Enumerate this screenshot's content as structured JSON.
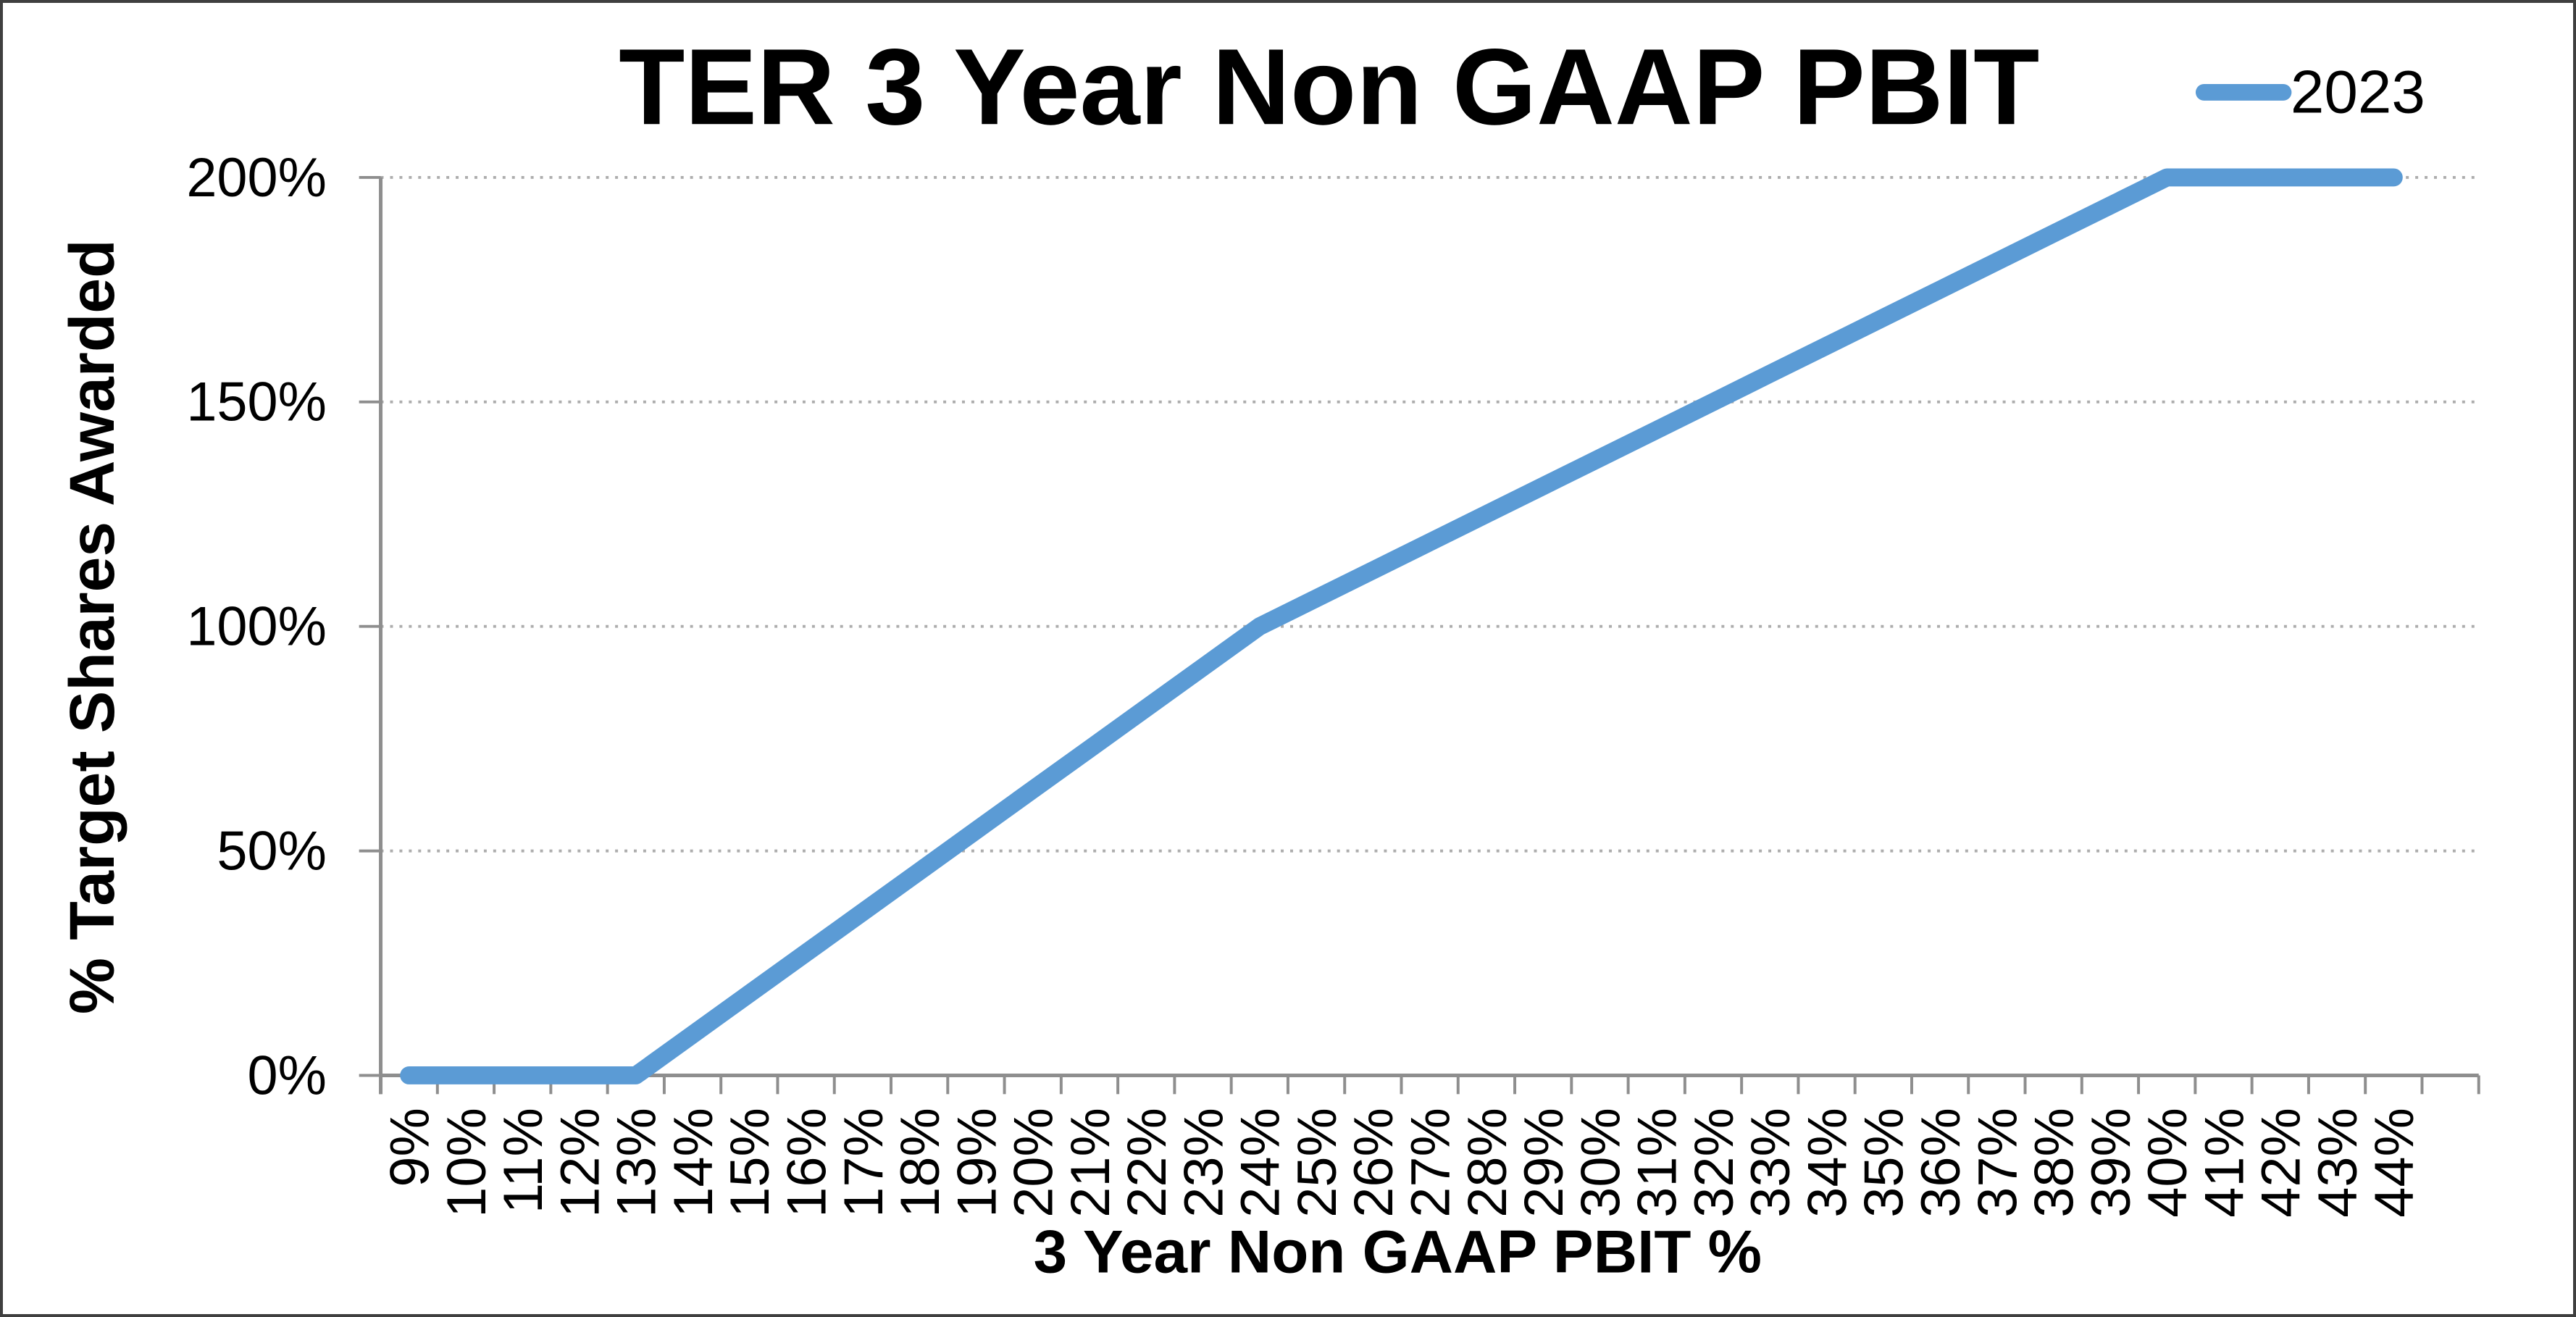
{
  "chart_data": {
    "type": "line",
    "title": "TER 3 Year Non GAAP PBIT",
    "xlabel": "3 Year Non GAAP PBIT %",
    "ylabel": "% Target Shares Awarded",
    "x_categories": [
      "9%",
      "10%",
      "11%",
      "12%",
      "13%",
      "14%",
      "15%",
      "16%",
      "17%",
      "18%",
      "19%",
      "20%",
      "21%",
      "22%",
      "23%",
      "24%",
      "25%",
      "26%",
      "27%",
      "28%",
      "29%",
      "30%",
      "31%",
      "32%",
      "33%",
      "34%",
      "35%",
      "36%",
      "37%",
      "38%",
      "39%",
      "40%",
      "41%",
      "42%",
      "43%",
      "44%"
    ],
    "y_tick_labels": [
      "0%",
      "50%",
      "100%",
      "150%",
      "200%"
    ],
    "ylim": [
      0,
      200
    ],
    "grid": "horizontal-dotted",
    "legend_position": "top-right",
    "series": [
      {
        "name": "2023",
        "color": "#5B9BD5",
        "values": [
          0,
          0,
          0,
          0,
          0,
          9.09,
          18.18,
          27.27,
          36.36,
          45.45,
          54.55,
          63.64,
          72.73,
          81.82,
          90.91,
          100,
          106.25,
          112.5,
          118.75,
          125,
          131.25,
          137.5,
          143.75,
          150,
          156.25,
          162.5,
          168.75,
          175,
          181.25,
          187.5,
          193.75,
          200,
          200,
          200,
          200,
          200
        ]
      }
    ],
    "key_points": [
      {
        "x": "9%",
        "y": "0%"
      },
      {
        "x": "13%",
        "y": "0%"
      },
      {
        "x": "24%",
        "y": "100%"
      },
      {
        "x": "40%",
        "y": "200%"
      },
      {
        "x": "44%",
        "y": "200%"
      }
    ]
  },
  "colors": {
    "series_line": "#5B9BD5",
    "axis": "#8E8E8E",
    "gridline": "#ADADAD",
    "text": "#000000",
    "chart_border": "#3F3F3F",
    "background": "#FFFFFF"
  }
}
